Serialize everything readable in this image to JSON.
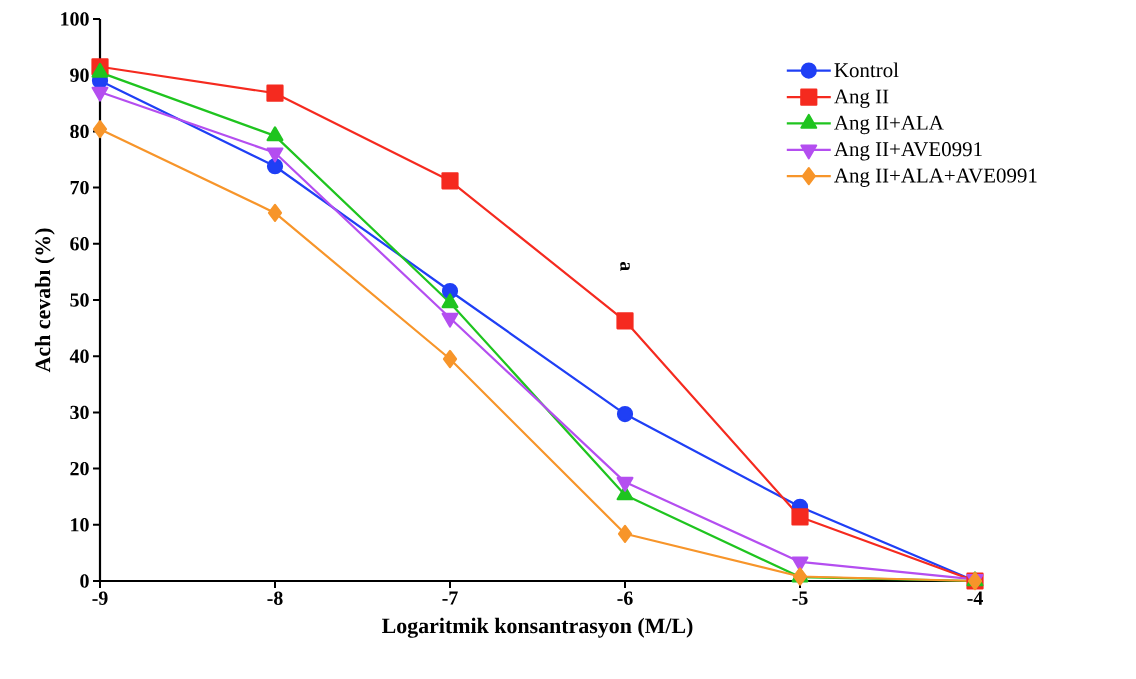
{
  "chart_data": {
    "type": "line",
    "xlabel": "Logaritmik konsantrasyon (M/L)",
    "ylabel": "Ach cevabı (%)",
    "x": [
      -9,
      -8,
      -7,
      -6,
      -5,
      -4
    ],
    "xlim": [
      -9,
      -4
    ],
    "xticks": [
      -9,
      -8,
      -7,
      -6,
      -5,
      -4
    ],
    "ylim": [
      0,
      100
    ],
    "yticks": [
      0,
      10,
      20,
      30,
      40,
      50,
      60,
      70,
      80,
      90,
      100
    ],
    "grid": false,
    "legend": "right",
    "line_style": "solid",
    "annotations": [
      "a"
    ],
    "series": [
      {
        "name": "Kontrol",
        "color": "#1f3ff5",
        "marker": "circle",
        "values": [
          89,
          73.8,
          51.6,
          29.7,
          13.2,
          0
        ]
      },
      {
        "name": "Ang II",
        "color": "#f52a1f",
        "marker": "square",
        "values": [
          91.5,
          86.8,
          71.2,
          46.3,
          11.4,
          0
        ]
      },
      {
        "name": "Ang II+ALA",
        "color": "#1fc41f",
        "marker": "triangle",
        "values": [
          90.5,
          79.2,
          49.5,
          15.3,
          0.7,
          0
        ]
      },
      {
        "name": "Ang II+AVE0991",
        "color": "#b44ef0",
        "marker": "triangle-down",
        "values": [
          87,
          76.2,
          46.8,
          17.6,
          3.4,
          0.3
        ]
      },
      {
        "name": "Ang II+ALA+AVE0991",
        "color": "#f7952a",
        "marker": "diamond",
        "values": [
          80.4,
          65.5,
          39.5,
          8.4,
          0.8,
          0
        ]
      }
    ]
  }
}
